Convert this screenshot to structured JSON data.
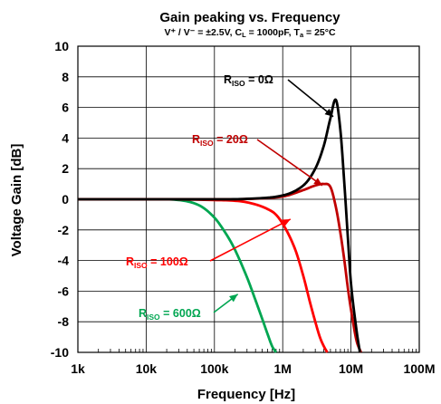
{
  "chart_data": {
    "type": "line",
    "title": "Gain peaking vs. Frequency",
    "subtitle": "V⁺ / V⁻ = ±2.5V, C_L = 1000pF, T_a = 25°C",
    "xlabel": "Frequency [Hz]",
    "ylabel": "Voltage Gain [dB]",
    "x_scale": "log",
    "xlim": [
      1000,
      100000000
    ],
    "ylim": [
      -10,
      10
    ],
    "grid": true,
    "x_ticks": [
      1000,
      10000,
      100000,
      1000000,
      10000000,
      100000000
    ],
    "x_tick_labels": [
      "1k",
      "10k",
      "100k",
      "1M",
      "10M",
      "100M"
    ],
    "y_ticks": [
      -10,
      -8,
      -6,
      -4,
      -2,
      0,
      2,
      4,
      6,
      8,
      10
    ],
    "y_tick_labels": [
      "-10",
      "-8",
      "-6",
      "-4",
      "-2",
      "0",
      "2",
      "4",
      "6",
      "8",
      "10"
    ],
    "series": [
      {
        "name": "R_ISO = 0Ω",
        "color": "#000000",
        "x": [
          1000,
          10000,
          100000,
          300000,
          1000000,
          2000000,
          3000000,
          4000000,
          5000000,
          6000000,
          7000000,
          8000000,
          9000000,
          10000000,
          12000000,
          13500000
        ],
        "y": [
          0,
          0,
          0,
          0.03,
          0.25,
          0.9,
          2.0,
          3.5,
          5.3,
          6.5,
          4.5,
          1.0,
          -2.5,
          -5.5,
          -8.5,
          -10
        ]
      },
      {
        "name": "R_ISO = 20Ω",
        "color": "#c00000",
        "x": [
          1000,
          10000,
          100000,
          300000,
          1000000,
          2000000,
          3000000,
          4000000,
          5000000,
          6000000,
          7000000,
          8000000,
          9000000,
          10000000,
          12000000,
          14000000
        ],
        "y": [
          0,
          0,
          0,
          0.02,
          0.18,
          0.6,
          0.9,
          1.0,
          0.8,
          -0.5,
          -2.2,
          -4.0,
          -5.8,
          -7.2,
          -9.2,
          -10
        ]
      },
      {
        "name": "R_ISO = 100Ω",
        "color": "#ff0000",
        "x": [
          1000,
          10000,
          100000,
          300000,
          700000,
          1000000,
          1500000,
          2000000,
          2500000,
          3000000,
          3500000,
          4000000,
          4500000
        ],
        "y": [
          0,
          0,
          -0.05,
          -0.2,
          -0.8,
          -1.6,
          -3.2,
          -5.0,
          -6.7,
          -8.0,
          -9.0,
          -9.6,
          -10
        ]
      },
      {
        "name": "R_ISO = 600Ω",
        "color": "#00a651",
        "x": [
          1000,
          3000,
          10000,
          30000,
          60000,
          100000,
          150000,
          200000,
          300000,
          400000,
          500000,
          600000,
          700000,
          800000
        ],
        "y": [
          0,
          0,
          0,
          -0.05,
          -0.4,
          -1.2,
          -2.3,
          -3.3,
          -5.1,
          -6.6,
          -7.8,
          -8.8,
          -9.6,
          -10
        ]
      }
    ],
    "annotations": [
      {
        "label_main": "R",
        "label_sub": "ISO",
        "label_rest": " = 0Ω",
        "color": "#000000",
        "arrow_to_x": 5500000,
        "arrow_to_y": 5.4
      },
      {
        "label_main": "R",
        "label_sub": "ISO",
        "label_rest": " = 20Ω",
        "color": "#c00000",
        "arrow_to_x": 3800000,
        "arrow_to_y": 0.9
      },
      {
        "label_main": "R",
        "label_sub": "ISO",
        "label_rest": " = 100Ω",
        "color": "#ff0000",
        "arrow_to_x": 1300000,
        "arrow_to_y": -1.3
      },
      {
        "label_main": "R",
        "label_sub": "ISO",
        "label_rest": " = 600Ω",
        "color": "#00a651",
        "arrow_to_x": 220000,
        "arrow_to_y": -6.2
      }
    ]
  }
}
